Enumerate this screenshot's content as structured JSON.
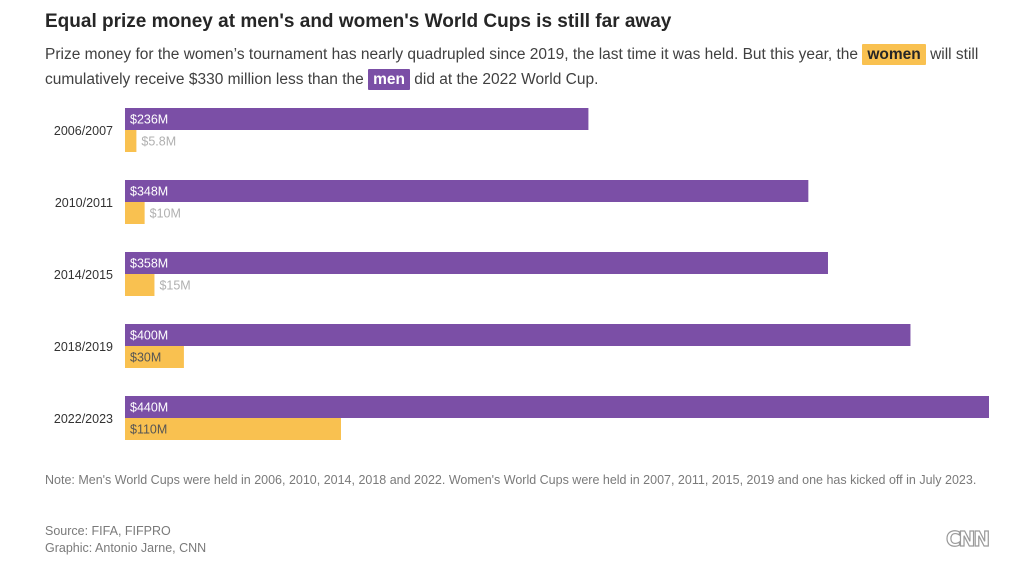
{
  "header": {
    "title": "Equal prize money at men's and women's World Cups is still far away",
    "subtitle_part1": "Prize money for the women’s tournament has nearly quadrupled since 2019, the last time it was held. But this year, the",
    "women_label": "women",
    "subtitle_part2": "will still cumulatively receive $330 million less than the",
    "men_label": "men",
    "subtitle_part3": "did at the 2022 World Cup."
  },
  "chart_data": {
    "type": "bar",
    "orientation": "horizontal",
    "categories": [
      "2006/2007",
      "2010/2011",
      "2014/2015",
      "2018/2019",
      "2022/2023"
    ],
    "series": [
      {
        "name": "men",
        "values": [
          236,
          348,
          358,
          400,
          440
        ],
        "labels": [
          "$236M",
          "$348M",
          "$358M",
          "$400M",
          "$440M"
        ],
        "color": "#7b4fa6"
      },
      {
        "name": "women",
        "values": [
          5.8,
          10,
          15,
          30,
          110
        ],
        "labels": [
          "$5.8M",
          "$10M",
          "$15M",
          "$30M",
          "$110M"
        ],
        "color": "#f9c150"
      }
    ],
    "xlim": [
      0,
      440
    ],
    "unit": "$M",
    "grid": false,
    "legend": "inline in subtitle"
  },
  "footer": {
    "note": "Note: Men's World Cups were held in 2006, 2010, 2014, 2018 and 2022. Women's World Cups were held in 2007, 2011, 2015, 2019 and one has kicked off in July 2023.",
    "source": "Source: FIFA, FIFPRO",
    "graphic": "Graphic: Antonio Jarne, CNN",
    "logo": "CNN"
  }
}
